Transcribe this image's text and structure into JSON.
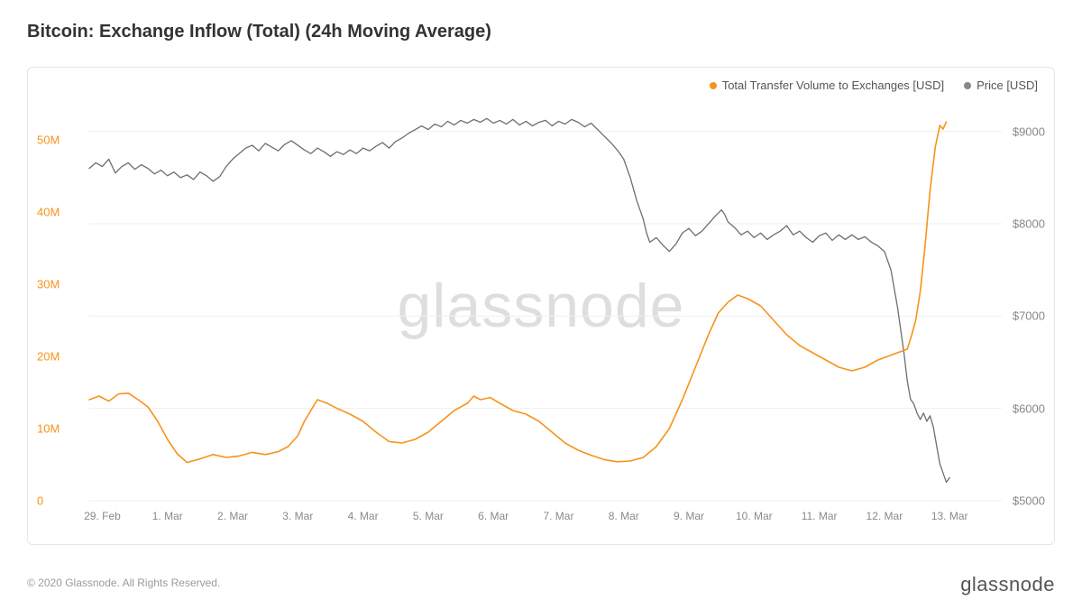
{
  "title": "Bitcoin: Exchange Inflow (Total) (24h Moving Average)",
  "watermark": "glassnode",
  "footer": "© 2020 Glassnode. All Rights Reserved.",
  "brand": "glassnode",
  "legend": {
    "series1": {
      "label": "Total Transfer Volume to Exchanges [USD]",
      "color": "#f7931a"
    },
    "series2": {
      "label": "Price [USD]",
      "color": "#888888"
    }
  },
  "chart": {
    "type": "line",
    "background_color": "#ffffff",
    "grid_color": "#efefef",
    "border_color": "#e5e5e5",
    "x": {
      "labels": [
        "29. Feb",
        "1. Mar",
        "2. Mar",
        "3. Mar",
        "4. Mar",
        "5. Mar",
        "6. Mar",
        "7. Mar",
        "8. Mar",
        "9. Mar",
        "10. Mar",
        "11. Mar",
        "12. Mar",
        "13. Mar"
      ],
      "min": 0,
      "max": 14
    },
    "y_left": {
      "min": 0,
      "max": 55,
      "ticks": [
        0,
        10,
        20,
        30,
        40,
        50
      ],
      "tick_labels": [
        "0",
        "10M",
        "20M",
        "30M",
        "40M",
        "50M"
      ],
      "color": "#f7931a",
      "fontsize": 13
    },
    "y_right": {
      "min": 5000,
      "max": 9300,
      "ticks": [
        5000,
        6000,
        7000,
        8000,
        9000
      ],
      "tick_labels": [
        "$5000",
        "$6000",
        "$7000",
        "$8000",
        "$9000"
      ],
      "color": "#888888",
      "fontsize": 13
    },
    "series_inflow": {
      "color": "#f7931a",
      "line_width": 1.6,
      "data": [
        [
          0.0,
          14.0
        ],
        [
          0.15,
          14.5
        ],
        [
          0.3,
          13.8
        ],
        [
          0.45,
          14.8
        ],
        [
          0.6,
          14.9
        ],
        [
          0.75,
          14.0
        ],
        [
          0.9,
          13.0
        ],
        [
          1.05,
          11.0
        ],
        [
          1.2,
          8.5
        ],
        [
          1.35,
          6.5
        ],
        [
          1.5,
          5.3
        ],
        [
          1.7,
          5.8
        ],
        [
          1.9,
          6.4
        ],
        [
          2.1,
          6.0
        ],
        [
          2.3,
          6.2
        ],
        [
          2.5,
          6.7
        ],
        [
          2.7,
          6.4
        ],
        [
          2.9,
          6.8
        ],
        [
          3.05,
          7.5
        ],
        [
          3.2,
          9.0
        ],
        [
          3.3,
          11.0
        ],
        [
          3.4,
          12.5
        ],
        [
          3.5,
          14.0
        ],
        [
          3.65,
          13.5
        ],
        [
          3.8,
          12.8
        ],
        [
          4.0,
          12.0
        ],
        [
          4.2,
          11.0
        ],
        [
          4.4,
          9.5
        ],
        [
          4.6,
          8.2
        ],
        [
          4.8,
          8.0
        ],
        [
          5.0,
          8.5
        ],
        [
          5.2,
          9.5
        ],
        [
          5.4,
          11.0
        ],
        [
          5.6,
          12.5
        ],
        [
          5.8,
          13.5
        ],
        [
          5.9,
          14.5
        ],
        [
          6.0,
          14.0
        ],
        [
          6.15,
          14.3
        ],
        [
          6.3,
          13.5
        ],
        [
          6.5,
          12.5
        ],
        [
          6.7,
          12.0
        ],
        [
          6.9,
          11.0
        ],
        [
          7.1,
          9.5
        ],
        [
          7.3,
          8.0
        ],
        [
          7.5,
          7.0
        ],
        [
          7.7,
          6.3
        ],
        [
          7.9,
          5.7
        ],
        [
          8.1,
          5.4
        ],
        [
          8.3,
          5.5
        ],
        [
          8.5,
          6.0
        ],
        [
          8.7,
          7.5
        ],
        [
          8.9,
          10.0
        ],
        [
          9.1,
          14.0
        ],
        [
          9.3,
          18.5
        ],
        [
          9.5,
          23.0
        ],
        [
          9.65,
          26.0
        ],
        [
          9.8,
          27.5
        ],
        [
          9.95,
          28.5
        ],
        [
          10.1,
          28.0
        ],
        [
          10.3,
          27.0
        ],
        [
          10.5,
          25.0
        ],
        [
          10.7,
          23.0
        ],
        [
          10.9,
          21.5
        ],
        [
          11.1,
          20.5
        ],
        [
          11.3,
          19.5
        ],
        [
          11.5,
          18.5
        ],
        [
          11.7,
          18.0
        ],
        [
          11.9,
          18.5
        ],
        [
          12.1,
          19.5
        ],
        [
          12.25,
          20.0
        ],
        [
          12.4,
          20.5
        ],
        [
          12.55,
          21.0
        ],
        [
          12.62,
          23.0
        ],
        [
          12.68,
          25.0
        ],
        [
          12.75,
          29.0
        ],
        [
          12.82,
          35.0
        ],
        [
          12.9,
          43.0
        ],
        [
          12.98,
          49.0
        ],
        [
          13.05,
          52.0
        ],
        [
          13.1,
          51.5
        ],
        [
          13.15,
          52.5
        ]
      ]
    },
    "series_price": {
      "color": "#6e6e6e",
      "line_width": 1.3,
      "data": [
        [
          0.0,
          8600
        ],
        [
          0.1,
          8660
        ],
        [
          0.2,
          8620
        ],
        [
          0.3,
          8700
        ],
        [
          0.4,
          8550
        ],
        [
          0.5,
          8620
        ],
        [
          0.6,
          8660
        ],
        [
          0.7,
          8590
        ],
        [
          0.8,
          8640
        ],
        [
          0.9,
          8600
        ],
        [
          1.0,
          8540
        ],
        [
          1.1,
          8580
        ],
        [
          1.2,
          8520
        ],
        [
          1.3,
          8560
        ],
        [
          1.4,
          8500
        ],
        [
          1.5,
          8530
        ],
        [
          1.6,
          8480
        ],
        [
          1.7,
          8560
        ],
        [
          1.8,
          8520
        ],
        [
          1.9,
          8460
        ],
        [
          2.0,
          8510
        ],
        [
          2.1,
          8620
        ],
        [
          2.2,
          8700
        ],
        [
          2.3,
          8760
        ],
        [
          2.4,
          8820
        ],
        [
          2.5,
          8850
        ],
        [
          2.6,
          8790
        ],
        [
          2.7,
          8870
        ],
        [
          2.8,
          8830
        ],
        [
          2.9,
          8790
        ],
        [
          3.0,
          8860
        ],
        [
          3.1,
          8900
        ],
        [
          3.2,
          8850
        ],
        [
          3.3,
          8800
        ],
        [
          3.4,
          8760
        ],
        [
          3.5,
          8820
        ],
        [
          3.6,
          8780
        ],
        [
          3.7,
          8730
        ],
        [
          3.8,
          8780
        ],
        [
          3.9,
          8750
        ],
        [
          4.0,
          8800
        ],
        [
          4.1,
          8760
        ],
        [
          4.2,
          8820
        ],
        [
          4.3,
          8790
        ],
        [
          4.4,
          8840
        ],
        [
          4.5,
          8880
        ],
        [
          4.6,
          8820
        ],
        [
          4.7,
          8890
        ],
        [
          4.8,
          8930
        ],
        [
          4.9,
          8980
        ],
        [
          5.0,
          9020
        ],
        [
          5.1,
          9060
        ],
        [
          5.2,
          9020
        ],
        [
          5.3,
          9080
        ],
        [
          5.4,
          9050
        ],
        [
          5.5,
          9110
        ],
        [
          5.6,
          9070
        ],
        [
          5.7,
          9120
        ],
        [
          5.8,
          9090
        ],
        [
          5.9,
          9130
        ],
        [
          6.0,
          9100
        ],
        [
          6.1,
          9140
        ],
        [
          6.2,
          9090
        ],
        [
          6.3,
          9120
        ],
        [
          6.4,
          9080
        ],
        [
          6.5,
          9130
        ],
        [
          6.6,
          9070
        ],
        [
          6.7,
          9110
        ],
        [
          6.8,
          9060
        ],
        [
          6.9,
          9100
        ],
        [
          7.0,
          9120
        ],
        [
          7.1,
          9060
        ],
        [
          7.2,
          9110
        ],
        [
          7.3,
          9080
        ],
        [
          7.4,
          9130
        ],
        [
          7.5,
          9100
        ],
        [
          7.6,
          9050
        ],
        [
          7.7,
          9090
        ],
        [
          7.8,
          9020
        ],
        [
          7.9,
          8950
        ],
        [
          8.0,
          8880
        ],
        [
          8.1,
          8800
        ],
        [
          8.2,
          8700
        ],
        [
          8.3,
          8500
        ],
        [
          8.4,
          8250
        ],
        [
          8.5,
          8050
        ],
        [
          8.55,
          7900
        ],
        [
          8.6,
          7800
        ],
        [
          8.7,
          7850
        ],
        [
          8.8,
          7770
        ],
        [
          8.9,
          7700
        ],
        [
          9.0,
          7780
        ],
        [
          9.1,
          7900
        ],
        [
          9.2,
          7950
        ],
        [
          9.3,
          7870
        ],
        [
          9.4,
          7920
        ],
        [
          9.5,
          8000
        ],
        [
          9.6,
          8080
        ],
        [
          9.7,
          8150
        ],
        [
          9.75,
          8100
        ],
        [
          9.8,
          8020
        ],
        [
          9.9,
          7960
        ],
        [
          10.0,
          7880
        ],
        [
          10.1,
          7920
        ],
        [
          10.2,
          7850
        ],
        [
          10.3,
          7900
        ],
        [
          10.4,
          7830
        ],
        [
          10.5,
          7880
        ],
        [
          10.6,
          7920
        ],
        [
          10.7,
          7980
        ],
        [
          10.8,
          7880
        ],
        [
          10.9,
          7920
        ],
        [
          11.0,
          7850
        ],
        [
          11.1,
          7800
        ],
        [
          11.2,
          7870
        ],
        [
          11.3,
          7900
        ],
        [
          11.4,
          7820
        ],
        [
          11.5,
          7880
        ],
        [
          11.6,
          7830
        ],
        [
          11.7,
          7880
        ],
        [
          11.8,
          7830
        ],
        [
          11.9,
          7860
        ],
        [
          12.0,
          7800
        ],
        [
          12.1,
          7760
        ],
        [
          12.2,
          7700
        ],
        [
          12.3,
          7500
        ],
        [
          12.4,
          7100
        ],
        [
          12.5,
          6600
        ],
        [
          12.55,
          6300
        ],
        [
          12.6,
          6100
        ],
        [
          12.65,
          6050
        ],
        [
          12.7,
          5950
        ],
        [
          12.75,
          5880
        ],
        [
          12.8,
          5950
        ],
        [
          12.85,
          5860
        ],
        [
          12.9,
          5920
        ],
        [
          12.95,
          5800
        ],
        [
          13.0,
          5600
        ],
        [
          13.05,
          5400
        ],
        [
          13.1,
          5300
        ],
        [
          13.15,
          5200
        ],
        [
          13.2,
          5250
        ]
      ]
    }
  }
}
